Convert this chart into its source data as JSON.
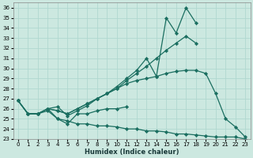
{
  "xlabel": "Humidex (Indice chaleur)",
  "bg_color": "#cce8e0",
  "grid_color": "#b0d8d0",
  "line_color": "#1a6e60",
  "xlim": [
    -0.5,
    23.5
  ],
  "ylim": [
    23,
    36.5
  ],
  "yticks": [
    23,
    24,
    25,
    26,
    27,
    28,
    29,
    30,
    31,
    32,
    33,
    34,
    35,
    36
  ],
  "xticks": [
    0,
    1,
    2,
    3,
    4,
    5,
    6,
    7,
    8,
    9,
    10,
    11,
    12,
    13,
    14,
    15,
    16,
    17,
    18,
    19,
    20,
    21,
    22,
    23
  ],
  "series": [
    {
      "x": [
        0,
        1,
        2,
        3,
        4,
        5,
        6,
        7,
        8,
        9,
        10,
        11,
        12,
        13,
        14,
        15,
        16,
        17,
        18,
        19,
        20,
        21,
        22,
        23
      ],
      "y": [
        26.8,
        25.5,
        25.5,
        26.0,
        26.2,
        25.3,
        25.8,
        26.3,
        27.0,
        27.5,
        28.2,
        29.0,
        29.8,
        31.0,
        29.2,
        35.0,
        33.5,
        36.0,
        34.5,
        null,
        null,
        null,
        null,
        null
      ]
    },
    {
      "x": [
        0,
        1,
        2,
        3,
        4,
        5,
        6,
        7,
        8,
        9,
        10,
        11,
        12,
        13,
        14,
        15,
        16,
        17,
        18,
        19,
        20,
        21,
        22,
        23
      ],
      "y": [
        26.8,
        25.5,
        25.5,
        26.0,
        25.8,
        25.5,
        26.0,
        26.5,
        27.0,
        27.5,
        28.0,
        28.8,
        29.5,
        30.2,
        31.0,
        31.8,
        32.5,
        33.2,
        32.5,
        null,
        null,
        null,
        null,
        null
      ]
    },
    {
      "x": [
        0,
        1,
        2,
        3,
        4,
        5,
        6,
        7,
        8,
        9,
        10,
        11,
        12,
        13,
        14,
        15,
        16,
        17,
        18,
        19,
        20,
        21,
        22,
        23
      ],
      "y": [
        26.8,
        25.5,
        25.5,
        26.0,
        25.8,
        25.5,
        26.0,
        26.5,
        27.0,
        27.5,
        28.0,
        28.5,
        28.8,
        29.0,
        29.2,
        29.5,
        29.7,
        29.8,
        29.8,
        29.5,
        27.5,
        25.0,
        24.2,
        23.2
      ]
    },
    {
      "x": [
        3,
        4,
        5,
        6,
        7,
        8,
        9,
        10,
        11
      ],
      "y": [
        26.0,
        25.0,
        24.5,
        25.5,
        25.5,
        25.8,
        26.0,
        26.0,
        26.2
      ]
    },
    {
      "x": [
        0,
        1,
        2,
        3,
        4,
        5,
        6,
        7,
        8,
        9,
        10,
        11,
        12,
        13,
        14,
        15,
        16,
        17,
        18,
        19,
        20,
        21,
        22,
        23
      ],
      "y": [
        26.8,
        25.5,
        25.5,
        25.8,
        25.0,
        24.8,
        24.5,
        24.5,
        24.3,
        24.3,
        24.2,
        24.0,
        24.0,
        23.8,
        23.8,
        23.7,
        23.5,
        23.5,
        23.4,
        23.3,
        23.2,
        23.2,
        23.2,
        23.0
      ]
    }
  ]
}
